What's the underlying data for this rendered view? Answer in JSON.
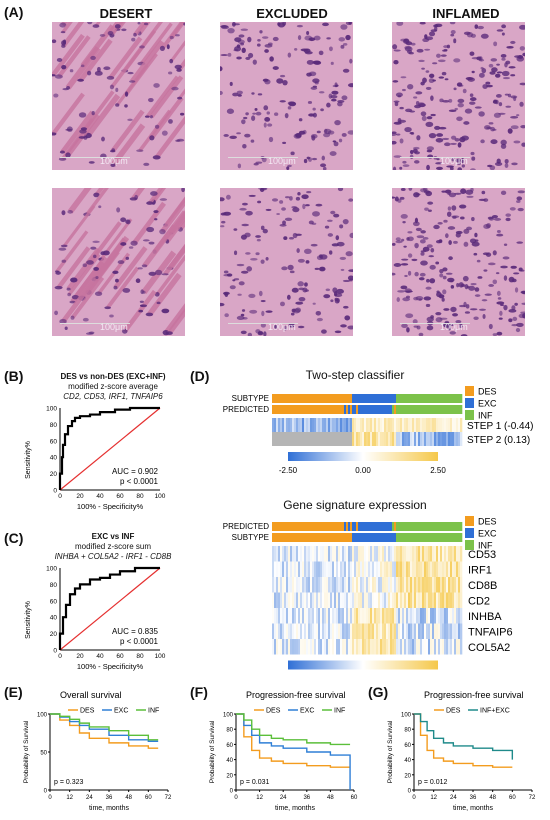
{
  "panel_labels": {
    "A": "(A)",
    "B": "(B)",
    "C": "(C)",
    "D": "(D)",
    "E": "(E)",
    "F": "(F)",
    "G": "(G)"
  },
  "histology": {
    "columns": [
      "DESERT",
      "EXCLUDED",
      "INFLAMED"
    ],
    "scale_label": "100μm",
    "colors": {
      "stroma": "#c7749f",
      "cells": "#5a2a7a",
      "background": "#d9a6c6"
    }
  },
  "panel_B": {
    "title": "DES vs non-DES (EXC+INF)",
    "subtitle": "modified z-score average",
    "genes": "CD2, CD53, IRF1, TNFAIP6",
    "auc": "AUC = 0.902",
    "p": "p < 0.0001",
    "xlabel": "100% - Specificity%",
    "ylabel": "Sensitivity%",
    "ticks": [
      "0",
      "20",
      "40",
      "60",
      "80",
      "100"
    ]
  },
  "panel_C": {
    "title": "EXC vs INF",
    "subtitle": "modified z-score sum",
    "genes": "INHBA + COL5A2 - IRF1 - CD8B",
    "auc": "AUC = 0.835",
    "p": "p < 0.0001",
    "xlabel": "100% - Specificity%",
    "ylabel": "Sensitivity%",
    "ticks": [
      "0",
      "20",
      "40",
      "60",
      "80",
      "100"
    ]
  },
  "panel_D": {
    "title1": "Two-step classifier",
    "title2": "Gene signature expression",
    "rows1": [
      "SUBTYPE",
      "PREDICTED"
    ],
    "rows2": [
      "PREDICTED",
      "SUBTYPE"
    ],
    "steps": [
      "STEP 1 (-0.44)",
      "STEP 2 (0.13)"
    ],
    "genes": [
      "CD53",
      "IRF1",
      "CD8B",
      "CD2",
      "INHBA",
      "TNFAIP6",
      "COL5A2"
    ],
    "legend": [
      "DES",
      "EXC",
      "INF"
    ],
    "scale": [
      "-2.50",
      "0.00",
      "2.50"
    ],
    "colors": {
      "DES": "#f39c1f",
      "EXC": "#2f6fd6",
      "INF": "#7cc24a",
      "low": "#2f6fd6",
      "mid": "#ffffff",
      "high": "#f5c84a"
    }
  },
  "panel_E": {
    "title": "Overall survival",
    "p": "p = 0.323",
    "legend": [
      "DES",
      "EXC",
      "INF"
    ],
    "xlabel": "time, months",
    "ylabel": "Probability of Survival",
    "xticks": [
      "0",
      "12",
      "24",
      "36",
      "48",
      "60",
      "72"
    ],
    "yticks": [
      "0",
      "50",
      "100"
    ]
  },
  "panel_F": {
    "title": "Progression-free survival",
    "p": "p = 0.031",
    "legend": [
      "DES",
      "EXC",
      "INF"
    ],
    "xlabel": "time, months",
    "ylabel": "Probability of Survival",
    "xticks": [
      "0",
      "12",
      "24",
      "36",
      "48",
      "60"
    ],
    "yticks": [
      "0",
      "20",
      "40",
      "60",
      "80",
      "100"
    ]
  },
  "panel_G": {
    "title": "Progression-free survival",
    "p": "p = 0.012",
    "legend": [
      "DES",
      "INF+EXC"
    ],
    "xlabel": "time, months",
    "ylabel": "Probability of Survival",
    "xticks": [
      "0",
      "12",
      "24",
      "36",
      "48",
      "60",
      "72"
    ],
    "yticks": [
      "0",
      "20",
      "40",
      "60",
      "80",
      "100"
    ]
  },
  "chart_data": [
    {
      "type": "line",
      "title": "DES vs non-DES (EXC+INF)",
      "xlabel": "100% - Specificity%",
      "ylabel": "Sensitivity%",
      "xlim": [
        0,
        100
      ],
      "ylim": [
        0,
        100
      ],
      "series": [
        {
          "values": [
            [
              0,
              0
            ],
            [
              2,
              20
            ],
            [
              3,
              40
            ],
            [
              5,
              55
            ],
            [
              8,
              68
            ],
            [
              12,
              78
            ],
            [
              15,
              84
            ],
            [
              20,
              88
            ],
            [
              30,
              90
            ],
            [
              40,
              92
            ],
            [
              55,
              95
            ],
            [
              70,
              98
            ],
            [
              85,
              100
            ],
            [
              100,
              100
            ]
          ]
        }
      ]
    },
    {
      "type": "line",
      "title": "EXC vs INF",
      "xlabel": "100% - Specificity%",
      "ylabel": "Sensitivity%",
      "xlim": [
        0,
        100
      ],
      "ylim": [
        0,
        100
      ],
      "series": [
        {
          "values": [
            [
              0,
              0
            ],
            [
              3,
              20
            ],
            [
              6,
              40
            ],
            [
              10,
              55
            ],
            [
              15,
              68
            ],
            [
              20,
              75
            ],
            [
              30,
              80
            ],
            [
              40,
              86
            ],
            [
              50,
              88
            ],
            [
              60,
              92
            ],
            [
              75,
              96
            ],
            [
              90,
              100
            ],
            [
              100,
              100
            ]
          ]
        }
      ]
    },
    {
      "type": "line",
      "title": "Overall survival",
      "xlabel": "time, months",
      "ylabel": "Probability of Survival",
      "xlim": [
        0,
        72
      ],
      "ylim": [
        0,
        100
      ],
      "series": [
        {
          "name": "DES",
          "values": [
            [
              0,
              100
            ],
            [
              6,
              92
            ],
            [
              12,
              85
            ],
            [
              18,
              75
            ],
            [
              24,
              68
            ],
            [
              36,
              62
            ],
            [
              48,
              58
            ],
            [
              60,
              55
            ],
            [
              66,
              55
            ]
          ]
        },
        {
          "name": "EXC",
          "values": [
            [
              0,
              100
            ],
            [
              6,
              96
            ],
            [
              12,
              90
            ],
            [
              18,
              85
            ],
            [
              24,
              80
            ],
            [
              36,
              72
            ],
            [
              48,
              66
            ],
            [
              60,
              64
            ],
            [
              66,
              64
            ]
          ]
        },
        {
          "name": "INF",
          "values": [
            [
              0,
              100
            ],
            [
              6,
              97
            ],
            [
              12,
              93
            ],
            [
              18,
              88
            ],
            [
              24,
              83
            ],
            [
              36,
              78
            ],
            [
              48,
              72
            ],
            [
              60,
              66
            ],
            [
              66,
              66
            ]
          ]
        }
      ]
    },
    {
      "type": "line",
      "title": "Progression-free survival",
      "xlabel": "time, months",
      "ylabel": "Probability of Survival",
      "xlim": [
        0,
        60
      ],
      "ylim": [
        0,
        100
      ],
      "series": [
        {
          "name": "DES",
          "values": [
            [
              0,
              100
            ],
            [
              4,
              70
            ],
            [
              8,
              52
            ],
            [
              12,
              42
            ],
            [
              18,
              38
            ],
            [
              24,
              35
            ],
            [
              36,
              32
            ],
            [
              48,
              30
            ],
            [
              58,
              30
            ]
          ]
        },
        {
          "name": "EXC",
          "values": [
            [
              0,
              100
            ],
            [
              4,
              85
            ],
            [
              8,
              72
            ],
            [
              12,
              62
            ],
            [
              18,
              58
            ],
            [
              24,
              55
            ],
            [
              36,
              50
            ],
            [
              48,
              46
            ],
            [
              56,
              46
            ],
            [
              58,
              0
            ]
          ]
        },
        {
          "name": "INF",
          "values": [
            [
              0,
              100
            ],
            [
              4,
              92
            ],
            [
              8,
              80
            ],
            [
              12,
              72
            ],
            [
              18,
              68
            ],
            [
              24,
              66
            ],
            [
              36,
              62
            ],
            [
              48,
              60
            ],
            [
              58,
              60
            ]
          ]
        }
      ]
    },
    {
      "type": "line",
      "title": "Progression-free survival",
      "xlabel": "time, months",
      "ylabel": "Probability of Survival",
      "xlim": [
        0,
        72
      ],
      "ylim": [
        0,
        100
      ],
      "series": [
        {
          "name": "DES",
          "values": [
            [
              0,
              100
            ],
            [
              4,
              72
            ],
            [
              8,
              52
            ],
            [
              12,
              42
            ],
            [
              18,
              38
            ],
            [
              24,
              35
            ],
            [
              36,
              32
            ],
            [
              48,
              30
            ],
            [
              60,
              30
            ]
          ]
        },
        {
          "name": "INF+EXC",
          "values": [
            [
              0,
              100
            ],
            [
              4,
              90
            ],
            [
              8,
              78
            ],
            [
              12,
              68
            ],
            [
              18,
              62
            ],
            [
              24,
              58
            ],
            [
              36,
              55
            ],
            [
              48,
              52
            ],
            [
              58,
              52
            ],
            [
              60,
              40
            ]
          ]
        }
      ]
    }
  ]
}
